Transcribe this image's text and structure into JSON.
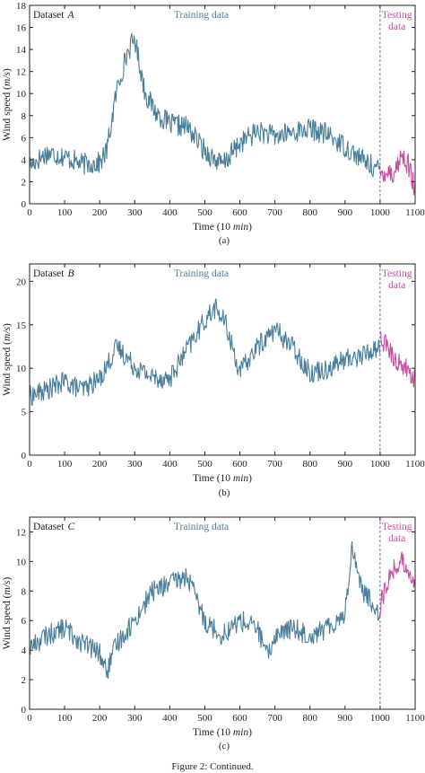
{
  "colors": {
    "training": "#4a7f9b",
    "testing": "#c94ea3",
    "split_line": "#5b5fa0",
    "axis": "#231f20"
  },
  "figure_caption": "Figure 2: Continued.",
  "chart_data": [
    {
      "type": "line",
      "panel": "(a)",
      "dataset_label": "Dataset",
      "dataset_letter": "A",
      "annotations": {
        "training": "Training data",
        "testing_line1": "Testing",
        "testing_line2": "data"
      },
      "xlabel": "Time (10 min)",
      "ylabel": "Wind speed (m/s)",
      "xlim": [
        0,
        1100
      ],
      "ylim": [
        0,
        18
      ],
      "xticks": [
        0,
        100,
        200,
        300,
        400,
        500,
        600,
        700,
        800,
        900,
        1000,
        1100
      ],
      "yticks": [
        0,
        2,
        4,
        6,
        8,
        10,
        12,
        14,
        16,
        18
      ],
      "split_at": 1000,
      "series": [
        {
          "name": "Training data",
          "role": "training",
          "x": [
            0,
            50,
            100,
            150,
            200,
            220,
            250,
            280,
            300,
            330,
            360,
            400,
            450,
            500,
            550,
            600,
            650,
            700,
            750,
            800,
            850,
            900,
            950,
            1000
          ],
          "values": [
            3.5,
            4.6,
            4.3,
            3.6,
            3.7,
            4.8,
            10.5,
            13.8,
            15.0,
            10.0,
            8.3,
            7.2,
            7.0,
            4.8,
            3.5,
            5.5,
            6.6,
            6.1,
            6.5,
            6.8,
            6.3,
            5.2,
            4.0,
            3.0
          ]
        },
        {
          "name": "Testing data",
          "role": "testing",
          "x": [
            1000,
            1020,
            1040,
            1060,
            1080,
            1100
          ],
          "values": [
            2.8,
            3.0,
            2.7,
            4.4,
            3.6,
            1.2
          ]
        }
      ]
    },
    {
      "type": "line",
      "panel": "(b)",
      "dataset_label": "Dataset",
      "dataset_letter": "B",
      "annotations": {
        "training": "Training data",
        "testing_line1": "Testing",
        "testing_line2": "data"
      },
      "xlabel": "Time (10 min)",
      "ylabel": "Wind speed (m/s)",
      "xlim": [
        0,
        1100
      ],
      "ylim": [
        0,
        22
      ],
      "xticks": [
        0,
        100,
        200,
        300,
        400,
        500,
        600,
        700,
        800,
        900,
        1000,
        1100
      ],
      "yticks": [
        0,
        5,
        10,
        15,
        20
      ],
      "split_at": 1000,
      "series": [
        {
          "name": "Training data",
          "role": "training",
          "x": [
            0,
            50,
            100,
            150,
            200,
            250,
            300,
            350,
            400,
            450,
            500,
            530,
            560,
            600,
            650,
            700,
            750,
            800,
            850,
            900,
            950,
            1000
          ],
          "values": [
            6.8,
            7.5,
            8.5,
            7.5,
            8.8,
            12.5,
            10.2,
            9.0,
            8.8,
            12.2,
            15.5,
            17.0,
            15.0,
            9.5,
            12.5,
            14.5,
            12.5,
            9.5,
            10.0,
            11.0,
            11.5,
            12.5
          ]
        },
        {
          "name": "Testing data",
          "role": "testing",
          "x": [
            1000,
            1020,
            1040,
            1060,
            1080,
            1100
          ],
          "values": [
            13.5,
            12.5,
            11.0,
            10.5,
            9.8,
            8.5
          ]
        }
      ]
    },
    {
      "type": "line",
      "panel": "(c)",
      "dataset_label": "Dataset",
      "dataset_letter": "C",
      "annotations": {
        "training": "Training data",
        "testing_line1": "Testing",
        "testing_line2": "data"
      },
      "xlabel": "Time (10 min)",
      "ylabel": "Wind speed (m/s)",
      "xlim": [
        0,
        1100
      ],
      "ylim": [
        0,
        13
      ],
      "xticks": [
        0,
        100,
        200,
        300,
        400,
        500,
        600,
        700,
        800,
        900,
        1000,
        1100
      ],
      "yticks": [
        0,
        2,
        4,
        6,
        8,
        10,
        12
      ],
      "split_at": 1000,
      "series": [
        {
          "name": "Training data",
          "role": "training",
          "x": [
            0,
            50,
            100,
            150,
            200,
            220,
            250,
            300,
            350,
            400,
            450,
            500,
            550,
            600,
            650,
            680,
            700,
            750,
            800,
            850,
            900,
            920,
            950,
            1000
          ],
          "values": [
            4.2,
            5.0,
            5.5,
            4.5,
            3.8,
            2.5,
            4.5,
            6.0,
            8.0,
            8.5,
            9.0,
            6.0,
            5.0,
            6.0,
            5.5,
            3.5,
            5.0,
            5.5,
            5.0,
            5.5,
            6.5,
            11.0,
            8.0,
            6.5
          ]
        },
        {
          "name": "Testing data",
          "role": "testing",
          "x": [
            1000,
            1020,
            1040,
            1060,
            1080,
            1100
          ],
          "values": [
            7.0,
            8.5,
            9.5,
            10.0,
            9.5,
            8.5
          ]
        }
      ]
    }
  ]
}
